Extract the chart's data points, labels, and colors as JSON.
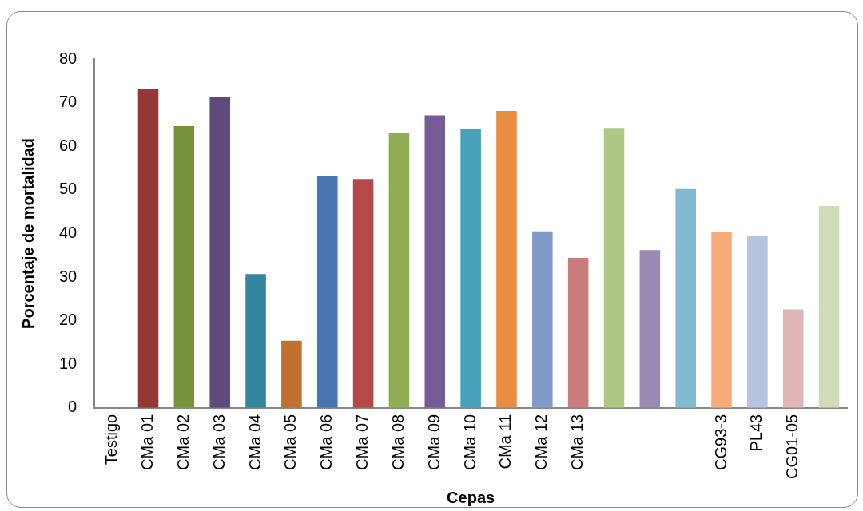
{
  "chart_data": {
    "type": "bar",
    "xlabel": "Cepas",
    "ylabel": "Porcentaje de mortalidad",
    "categories": [
      "Testigo",
      "CMa 01",
      "CMa 02",
      "CMa 03",
      "CMa 04",
      "CMa 05",
      "CMa 06",
      "CMa 07",
      "CMa 08",
      "CMa 09",
      "CMa 10",
      "CMa 11",
      "CMa 12",
      "CMa 13",
      null,
      null,
      null,
      "CG93-3",
      "PL43",
      "CG01-05",
      null
    ],
    "values": [
      0,
      73.2,
      64.6,
      71.4,
      30.7,
      15.4,
      53.1,
      52.5,
      63,
      67.1,
      64,
      68.1,
      40.5,
      34.4,
      64.2,
      36.2,
      50.2,
      40.3,
      39.5,
      22.6,
      46.3
    ],
    "colors": [
      "#4f81bd",
      "#953735",
      "#77933c",
      "#604a7b",
      "#31859c",
      "#c0712f",
      "#4675b0",
      "#b34a47",
      "#8fae54",
      "#775b95",
      "#47a1bb",
      "#e88d42",
      "#7f9cc8",
      "#c97d7c",
      "#afc785",
      "#9b8ab4",
      "#7fbad0",
      "#f7ab7a",
      "#b4c3de",
      "#dfb5b5",
      "#cfdcb7"
    ],
    "ylim": [
      0,
      80
    ],
    "yticks": [
      0,
      10,
      20,
      30,
      40,
      50,
      60,
      70,
      80
    ],
    "grid": false,
    "legend": false
  }
}
